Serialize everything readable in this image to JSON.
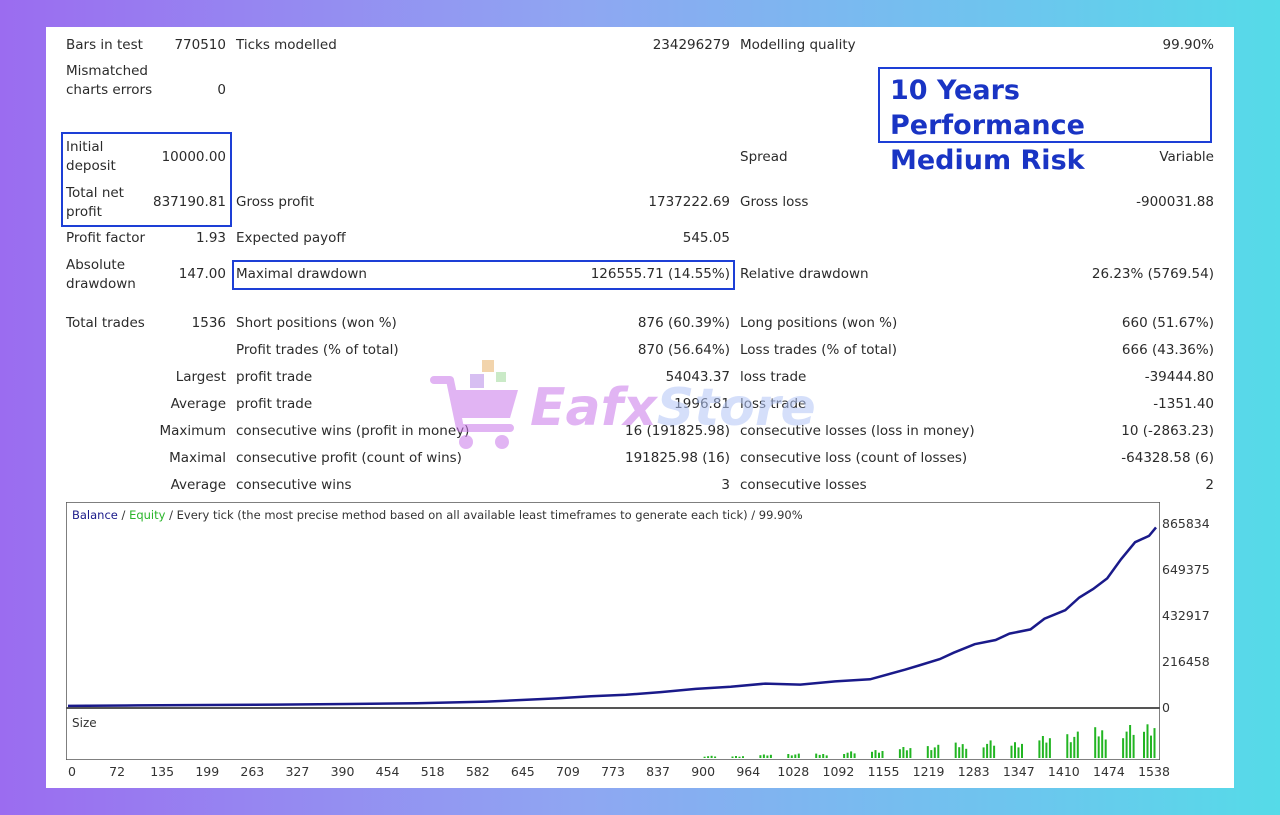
{
  "promo": {
    "line1": "10 Years Performance",
    "line2": "Medium Risk"
  },
  "watermark": {
    "text_a": "Eafx",
    "text_b": "Store",
    "icon": "shopping-cart-icon"
  },
  "report": {
    "bars_in_test_label": "Bars in test",
    "bars_in_test_value": "770510",
    "ticks_modelled_label": "Ticks modelled",
    "ticks_modelled_value": "234296279",
    "modelling_quality_label": "Modelling quality",
    "modelling_quality_value": "99.90%",
    "mismatched_label": "Mismatched charts errors",
    "mismatched_value": "0",
    "initial_deposit_label": "Initial deposit",
    "initial_deposit_value": "10000.00",
    "spread_label": "Spread",
    "spread_value": "Variable",
    "total_net_profit_label": "Total net profit",
    "total_net_profit_value": "837190.81",
    "gross_profit_label": "Gross profit",
    "gross_profit_value": "1737222.69",
    "gross_loss_label": "Gross loss",
    "gross_loss_value": "-900031.88",
    "profit_factor_label": "Profit factor",
    "profit_factor_value": "1.93",
    "expected_payoff_label": "Expected payoff",
    "expected_payoff_value": "545.05",
    "absolute_drawdown_label": "Absolute drawdown",
    "absolute_drawdown_value": "147.00",
    "maximal_drawdown_label": "Maximal drawdown",
    "maximal_drawdown_value": "126555.71 (14.55%)",
    "relative_drawdown_label": "Relative drawdown",
    "relative_drawdown_value": "26.23% (5769.54)",
    "total_trades_label": "Total trades",
    "total_trades_value": "1536",
    "short_positions_label": "Short positions (won %)",
    "short_positions_value": "876 (60.39%)",
    "long_positions_label": "Long positions (won %)",
    "long_positions_value": "660 (51.67%)",
    "profit_trades_label": "Profit trades (% of total)",
    "profit_trades_value": "870 (56.64%)",
    "loss_trades_label": "Loss trades (% of total)",
    "loss_trades_value": "666 (43.36%)",
    "largest_label": "Largest",
    "largest_profit_label": "profit trade",
    "largest_profit_value": "54043.37",
    "largest_loss_label": "loss trade",
    "largest_loss_value": "-39444.80",
    "average_label": "Average",
    "average_profit_label": "profit trade",
    "average_profit_value": "1996.81",
    "average_loss_label": "loss trade",
    "average_loss_value": "-1351.40",
    "maximum_label": "Maximum",
    "max_consec_wins_label": "consecutive wins (profit in money)",
    "max_consec_wins_value": "16 (191825.98)",
    "max_consec_losses_label": "consecutive losses (loss in money)",
    "max_consec_losses_value": "10 (-2863.23)",
    "maximal_label": "Maximal",
    "maximal_consec_profit_label": "consecutive profit (count of wins)",
    "maximal_consec_profit_value": "191825.98 (16)",
    "maximal_consec_loss_label": "consecutive loss (count of losses)",
    "maximal_consec_loss_value": "-64328.58 (6)",
    "average2_label": "Average",
    "avg_consec_wins_label": "consecutive wins",
    "avg_consec_wins_value": "3",
    "avg_consec_losses_label": "consecutive losses",
    "avg_consec_losses_value": "2"
  },
  "legend": {
    "balance": "Balance",
    "sep1": " / ",
    "equity": "Equity",
    "rest": " / Every tick (the most precise method based on all available least timeframes to generate each tick) / 99.90%"
  },
  "size_label": "Size",
  "colors": {
    "balance_line": "#1a1a8a",
    "size_bars": "#22b522",
    "highlight_box": "#1d3fd6"
  },
  "chart_data": {
    "type": "line",
    "y_ticks": [
      "865834",
      "649375",
      "432917",
      "216458",
      "0"
    ],
    "x_ticks": [
      "0",
      "72",
      "135",
      "199",
      "263",
      "327",
      "390",
      "454",
      "518",
      "582",
      "645",
      "709",
      "773",
      "837",
      "900",
      "964",
      "1028",
      "1092",
      "1155",
      "1219",
      "1283",
      "1347",
      "1410",
      "1474",
      "1538"
    ],
    "ylim": [
      0,
      865834
    ],
    "xlim": [
      0,
      1560
    ],
    "series": [
      {
        "name": "Balance",
        "x": [
          0,
          100,
          200,
          300,
          400,
          500,
          600,
          700,
          750,
          800,
          850,
          900,
          950,
          1000,
          1050,
          1100,
          1150,
          1200,
          1220,
          1250,
          1270,
          1300,
          1330,
          1350,
          1380,
          1400,
          1430,
          1450,
          1470,
          1490,
          1510,
          1530,
          1550,
          1560
        ],
        "y": [
          10000,
          12000,
          14000,
          16000,
          19000,
          22000,
          30000,
          45000,
          55000,
          62000,
          75000,
          90000,
          100000,
          115000,
          110000,
          125000,
          135000,
          180000,
          200000,
          230000,
          260000,
          300000,
          320000,
          350000,
          370000,
          420000,
          460000,
          520000,
          560000,
          610000,
          700000,
          780000,
          810000,
          850000
        ]
      }
    ],
    "size": {
      "x": [
        920,
        960,
        1000,
        1040,
        1080,
        1120,
        1160,
        1200,
        1240,
        1280,
        1320,
        1360,
        1400,
        1440,
        1480,
        1520,
        1550
      ],
      "y": [
        0.05,
        0.05,
        0.08,
        0.1,
        0.1,
        0.15,
        0.2,
        0.25,
        0.3,
        0.35,
        0.4,
        0.4,
        0.5,
        0.6,
        0.7,
        0.75,
        0.85
      ]
    }
  }
}
